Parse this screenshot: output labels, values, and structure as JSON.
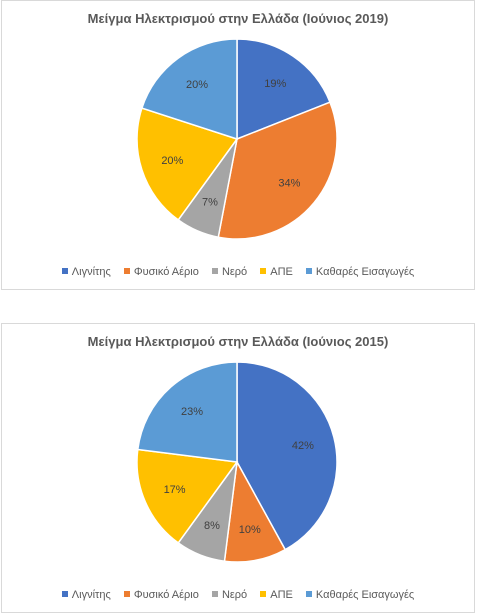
{
  "chart_data": [
    {
      "type": "pie",
      "title": "Μείγμα Ηλεκτρισμού στην Ελλάδα (Ιούνιος 2019)",
      "categories": [
        "Λιγνίτης",
        "Φυσικό Αέριο",
        "Νερό",
        "ΑΠΕ",
        "Καθαρές Εισαγωγές"
      ],
      "values": [
        19,
        34,
        7,
        20,
        20
      ],
      "labels": [
        "19%",
        "34%",
        "7%",
        "20%",
        "20%"
      ],
      "colors": [
        "#4472c4",
        "#ed7d31",
        "#a5a5a5",
        "#ffc000",
        "#5b9bd5"
      ],
      "legend_position": "bottom"
    },
    {
      "type": "pie",
      "title": "Μείγμα Ηλεκτρισμού στην Ελλάδα (Ιούνιος 2015)",
      "categories": [
        "Λιγνίτης",
        "Φυσικό Αέριο",
        "Νερό",
        "ΑΠΕ",
        "Καθαρές Εισαγωγές"
      ],
      "values": [
        42,
        10,
        8,
        17,
        23
      ],
      "labels": [
        "42%",
        "10%",
        "8%",
        "17%",
        "23%"
      ],
      "colors": [
        "#4472c4",
        "#ed7d31",
        "#a5a5a5",
        "#ffc000",
        "#5b9bd5"
      ],
      "legend_position": "bottom"
    }
  ]
}
